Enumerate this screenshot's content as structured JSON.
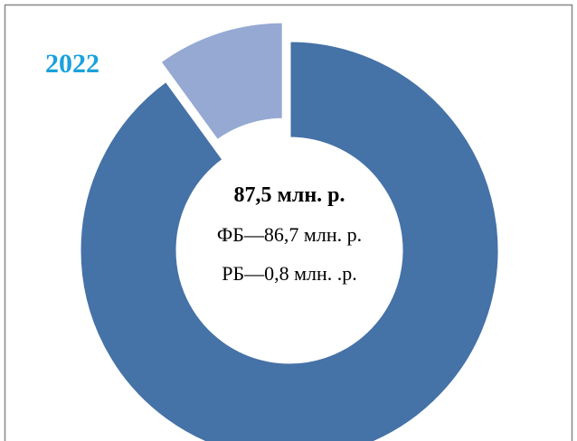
{
  "chart_data": {
    "type": "donut",
    "title": "2022",
    "values": [
      90,
      10
    ],
    "colors": [
      "#4572a7",
      "#95a9d3"
    ],
    "annotations": [
      "87,5 млн. р.",
      "ФБ—86,7 млн. р.",
      "РБ—0,8 млн. .р."
    ]
  }
}
